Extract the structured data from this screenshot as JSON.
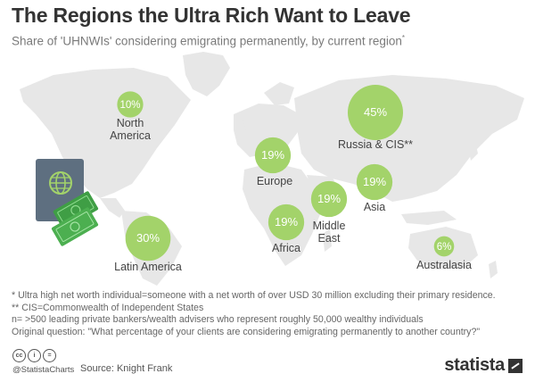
{
  "header": {
    "title": "The Regions the Ultra Rich Want to Leave",
    "subtitle": "Share of 'UHNWIs' considering emigrating permanently, by current region",
    "subtitle_mark": "*"
  },
  "chart_data": {
    "type": "bubble-map",
    "title": "The Regions the Ultra Rich Want to Leave",
    "subtitle": "Share of 'UHNWIs' considering emigrating permanently, by current region*",
    "unit": "%",
    "bubble_color": "#a3d36a",
    "series": [
      {
        "region": [
          "North",
          "America"
        ],
        "value": 10
      },
      {
        "region": [
          "Russia & CIS**"
        ],
        "value": 45
      },
      {
        "region": [
          "Europe"
        ],
        "value": 19
      },
      {
        "region": [
          "Asia"
        ],
        "value": 19
      },
      {
        "region": [
          "Middle",
          "East"
        ],
        "value": 19
      },
      {
        "region": [
          "Africa"
        ],
        "value": 19
      },
      {
        "region": [
          "Latin America"
        ],
        "value": 30
      },
      {
        "region": [
          "Australasia"
        ],
        "value": 6
      }
    ]
  },
  "notes": [
    "*   Ultra high net worth individual=someone with a net worth of over USD 30 million excluding their primary residence.",
    "** CIS=Commonwealth of Independent States",
    "n= >500 leading private bankers/wealth advisers who represent roughly 50,000 wealthy individuals",
    "Original question: \"What percentage of your clients are considering emigrating permanently to another country?\""
  ],
  "footer": {
    "cc_labels": [
      "cc",
      "i",
      "="
    ],
    "handle": "@StatistaCharts",
    "source": "Source: Knight Frank",
    "logo": "statista"
  },
  "icons": [
    "passport-globe-icon",
    "cash-icon",
    "cc-license-icon",
    "statista-logo-icon"
  ],
  "colors": {
    "map": "#e7e7e7",
    "bubble": "#a3d36a",
    "passport": "#5e6f80",
    "cash": "#4caf50",
    "text_dark": "#333333"
  }
}
